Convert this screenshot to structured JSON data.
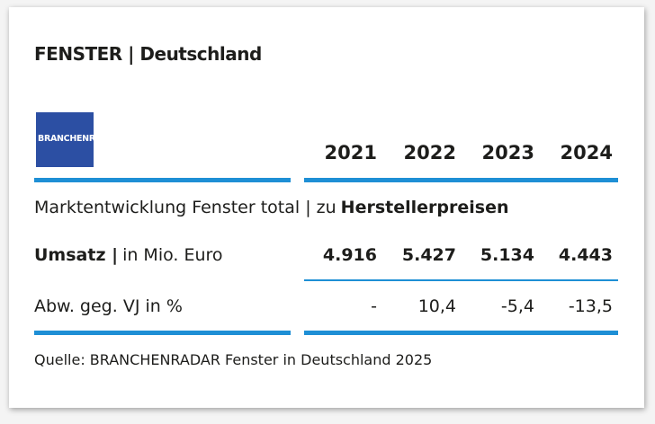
{
  "header": {
    "title": "FENSTER | Deutschland",
    "logo": "BRANCHENRADAR"
  },
  "table": {
    "columns": [
      "2021",
      "2022",
      "2023",
      "2024"
    ],
    "section": [
      "Marktentwicklung Fenster total | zu",
      "Herstellerpreisen"
    ],
    "rows": [
      {
        "label": [
          "Umsatz |",
          "in Mio. Euro"
        ],
        "cells": [
          "4.916",
          "5.427",
          "5.134",
          "4.443"
        ]
      },
      {
        "label": [
          "Abw. geg. VJ in %"
        ],
        "cells": [
          "-",
          "10,4",
          "-5,4",
          "-13,5"
        ]
      }
    ]
  },
  "source": "Quelle: BRANCHENRADAR Fenster in Deutschland 2025"
}
